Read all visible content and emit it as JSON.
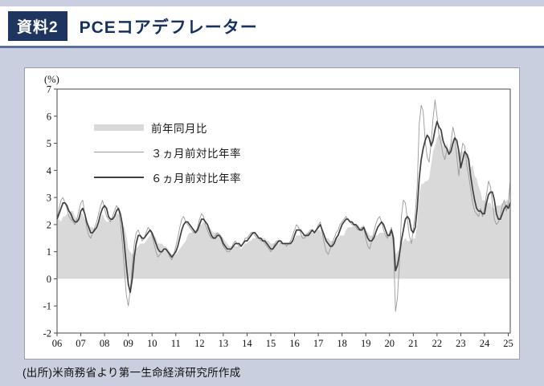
{
  "header": {
    "badge": "資料2",
    "title": "PCEコアデフレーター"
  },
  "footer": {
    "source": "(出所)米商務省より第一生命経済研究所作成"
  },
  "colors": {
    "page_background": "#c9cfde",
    "header_background": "#ffffff",
    "badge_background": "#1e3560",
    "title_text": "#16305f",
    "header_rule": "#5a6da5",
    "panel_border": "#9aa0b0",
    "area_series": "#d9d9d9",
    "thin_line_series": "#9a9a9a",
    "mid_line_series": "#3f3f3f"
  },
  "chart_data": {
    "type": "line",
    "title": "PCEコアデフレーター",
    "unit_label": "(%)",
    "grid": false,
    "legend_position": "upper-left",
    "x_start": "2006-01",
    "x_frequency": "monthly",
    "x_tick_labels": [
      "06",
      "07",
      "08",
      "09",
      "10",
      "11",
      "12",
      "13",
      "14",
      "15",
      "16",
      "17",
      "18",
      "19",
      "20",
      "21",
      "22",
      "23",
      "24",
      "25"
    ],
    "ylim": [
      -2,
      7
    ],
    "y_ticks": [
      -2,
      -1,
      0,
      1,
      2,
      3,
      4,
      5,
      6,
      7
    ],
    "series": [
      {
        "name": "前年同月比",
        "style": "area",
        "color": "#d9d9d9",
        "values": [
          2.2,
          2.2,
          2.1,
          2.3,
          2.3,
          2.4,
          2.4,
          2.5,
          2.5,
          2.3,
          2.2,
          2.3,
          2.4,
          2.4,
          2.2,
          2.1,
          2.0,
          1.9,
          1.9,
          1.8,
          1.9,
          2.0,
          2.2,
          2.4,
          2.2,
          2.1,
          2.1,
          2.2,
          2.2,
          2.3,
          2.4,
          2.4,
          2.2,
          2.0,
          1.9,
          1.6,
          1.1,
          1.0,
          0.9,
          1.0,
          1.1,
          1.2,
          1.3,
          1.3,
          1.3,
          1.4,
          1.5,
          1.6,
          1.7,
          1.6,
          1.5,
          1.3,
          1.3,
          1.3,
          1.2,
          1.2,
          1.1,
          1.0,
          0.9,
          0.9,
          0.9,
          1.0,
          1.1,
          1.2,
          1.3,
          1.4,
          1.6,
          1.7,
          1.7,
          1.8,
          1.8,
          1.9,
          2.0,
          2.0,
          2.1,
          2.0,
          1.9,
          1.9,
          1.8,
          1.7,
          1.7,
          1.7,
          1.7,
          1.6,
          1.5,
          1.4,
          1.3,
          1.2,
          1.2,
          1.2,
          1.2,
          1.2,
          1.2,
          1.1,
          1.2,
          1.3,
          1.3,
          1.4,
          1.4,
          1.5,
          1.5,
          1.5,
          1.5,
          1.5,
          1.5,
          1.5,
          1.4,
          1.4,
          1.3,
          1.3,
          1.3,
          1.3,
          1.3,
          1.3,
          1.3,
          1.3,
          1.3,
          1.3,
          1.3,
          1.4,
          1.5,
          1.6,
          1.6,
          1.6,
          1.6,
          1.6,
          1.7,
          1.7,
          1.7,
          1.7,
          1.7,
          1.8,
          1.8,
          1.8,
          1.6,
          1.6,
          1.5,
          1.5,
          1.4,
          1.4,
          1.4,
          1.5,
          1.5,
          1.6,
          1.6,
          1.6,
          1.8,
          1.9,
          1.9,
          1.9,
          2.0,
          2.0,
          2.0,
          1.9,
          1.9,
          2.0,
          1.8,
          1.7,
          1.6,
          1.6,
          1.5,
          1.6,
          1.6,
          1.7,
          1.7,
          1.7,
          1.6,
          1.6,
          1.7,
          1.8,
          1.7,
          0.9,
          1.0,
          1.1,
          1.3,
          1.4,
          1.5,
          1.4,
          1.4,
          1.4,
          1.5,
          1.5,
          2.0,
          3.1,
          3.5,
          3.5,
          3.6,
          3.6,
          3.7,
          4.2,
          4.7,
          4.9,
          5.2,
          5.3,
          5.3,
          4.9,
          4.9,
          5.0,
          4.7,
          4.9,
          5.2,
          5.1,
          4.8,
          4.6,
          4.7,
          4.7,
          4.6,
          4.6,
          4.6,
          4.1,
          4.2,
          3.8,
          3.7,
          3.4,
          3.2,
          2.9,
          2.9,
          2.8,
          2.8,
          2.8,
          2.6,
          2.6,
          2.7,
          2.7,
          2.7,
          2.8,
          2.8,
          2.9,
          2.9,
          2.8
        ]
      },
      {
        "name": "３ヵ月前対比年率",
        "style": "thin-line",
        "color": "#9a9a9a",
        "values": [
          2.2,
          2.6,
          2.9,
          3.0,
          2.8,
          2.6,
          2.3,
          2.2,
          2.1,
          2.0,
          2.2,
          2.5,
          2.8,
          2.9,
          2.4,
          1.9,
          1.6,
          1.5,
          1.7,
          1.9,
          2.1,
          2.4,
          2.7,
          2.9,
          2.6,
          2.3,
          2.2,
          2.1,
          2.3,
          2.5,
          2.7,
          2.6,
          2.1,
          1.3,
          0.4,
          -0.6,
          -1.0,
          -0.4,
          0.5,
          1.3,
          1.7,
          1.8,
          1.6,
          1.4,
          1.5,
          1.7,
          1.9,
          1.8,
          1.6,
          1.3,
          1.0,
          0.8,
          0.9,
          1.0,
          1.1,
          1.1,
          1.0,
          0.8,
          0.7,
          0.9,
          1.2,
          1.5,
          1.9,
          2.2,
          2.3,
          2.1,
          2.0,
          1.9,
          1.8,
          1.7,
          1.7,
          1.9,
          2.2,
          2.4,
          2.3,
          2.0,
          1.8,
          1.6,
          1.5,
          1.5,
          1.6,
          1.7,
          1.6,
          1.4,
          1.2,
          1.1,
          1.0,
          1.0,
          1.1,
          1.3,
          1.4,
          1.3,
          1.2,
          1.2,
          1.3,
          1.5,
          1.5,
          1.6,
          1.7,
          1.7,
          1.6,
          1.5,
          1.5,
          1.4,
          1.4,
          1.3,
          1.2,
          1.1,
          1.0,
          1.1,
          1.3,
          1.4,
          1.4,
          1.3,
          1.3,
          1.3,
          1.2,
          1.3,
          1.4,
          1.6,
          1.8,
          2.0,
          1.9,
          1.7,
          1.5,
          1.5,
          1.6,
          1.7,
          1.8,
          1.8,
          1.7,
          1.8,
          2.0,
          2.1,
          1.7,
          1.3,
          1.0,
          0.9,
          1.1,
          1.3,
          1.5,
          1.7,
          1.8,
          2.0,
          2.1,
          2.2,
          2.3,
          2.2,
          2.1,
          2.0,
          2.0,
          1.9,
          1.8,
          1.8,
          1.9,
          1.9,
          1.5,
          1.2,
          1.1,
          1.4,
          1.7,
          2.0,
          2.2,
          2.3,
          2.1,
          1.8,
          1.6,
          1.5,
          1.7,
          1.9,
          1.2,
          -1.2,
          -0.7,
          0.6,
          2.3,
          2.9,
          2.8,
          2.2,
          1.6,
          1.3,
          1.8,
          2.4,
          3.4,
          5.7,
          6.4,
          6.2,
          5.1,
          4.5,
          4.3,
          5.0,
          5.9,
          6.6,
          6.0,
          5.3,
          5.0,
          4.6,
          4.4,
          4.8,
          4.6,
          5.0,
          5.6,
          5.3,
          4.5,
          3.8,
          4.5,
          5.0,
          4.9,
          4.2,
          3.8,
          3.3,
          2.8,
          2.5,
          2.4,
          2.3,
          2.6,
          2.3,
          2.6,
          3.1,
          3.6,
          3.4,
          2.8,
          2.2,
          2.0,
          2.1,
          2.3,
          2.7,
          2.9,
          2.5,
          2.8,
          3.6
        ]
      },
      {
        "name": "６ヵ月前対比年率",
        "style": "line",
        "color": "#3f3f3f",
        "values": [
          2.2,
          2.4,
          2.6,
          2.8,
          2.8,
          2.7,
          2.5,
          2.4,
          2.2,
          2.1,
          2.1,
          2.2,
          2.5,
          2.6,
          2.4,
          2.1,
          1.9,
          1.7,
          1.7,
          1.8,
          1.9,
          2.1,
          2.4,
          2.6,
          2.7,
          2.6,
          2.3,
          2.2,
          2.2,
          2.3,
          2.5,
          2.6,
          2.4,
          2.0,
          1.3,
          0.5,
          -0.2,
          -0.5,
          0.0,
          0.8,
          1.3,
          1.6,
          1.6,
          1.5,
          1.5,
          1.6,
          1.7,
          1.8,
          1.7,
          1.5,
          1.3,
          1.1,
          1.0,
          1.0,
          1.1,
          1.1,
          1.0,
          0.9,
          0.8,
          0.9,
          1.0,
          1.2,
          1.5,
          1.8,
          2.0,
          2.1,
          2.1,
          2.0,
          1.9,
          1.8,
          1.7,
          1.8,
          2.0,
          2.2,
          2.2,
          2.1,
          2.0,
          1.8,
          1.6,
          1.5,
          1.5,
          1.6,
          1.6,
          1.5,
          1.3,
          1.2,
          1.1,
          1.1,
          1.1,
          1.2,
          1.3,
          1.3,
          1.3,
          1.2,
          1.3,
          1.4,
          1.4,
          1.5,
          1.6,
          1.7,
          1.7,
          1.6,
          1.5,
          1.5,
          1.4,
          1.4,
          1.3,
          1.2,
          1.1,
          1.1,
          1.2,
          1.3,
          1.4,
          1.4,
          1.3,
          1.3,
          1.3,
          1.3,
          1.3,
          1.4,
          1.6,
          1.8,
          1.8,
          1.8,
          1.7,
          1.6,
          1.6,
          1.6,
          1.7,
          1.8,
          1.7,
          1.8,
          1.9,
          2.0,
          1.8,
          1.6,
          1.4,
          1.3,
          1.2,
          1.2,
          1.3,
          1.5,
          1.6,
          1.8,
          2.0,
          2.1,
          2.2,
          2.2,
          2.1,
          2.1,
          2.0,
          2.0,
          1.9,
          1.8,
          1.8,
          1.9,
          1.7,
          1.5,
          1.4,
          1.4,
          1.5,
          1.7,
          1.9,
          2.0,
          2.1,
          2.0,
          1.8,
          1.6,
          1.6,
          1.8,
          1.5,
          0.3,
          0.5,
          0.9,
          1.4,
          1.8,
          2.2,
          2.3,
          2.2,
          1.8,
          1.7,
          1.9,
          2.6,
          3.7,
          4.4,
          4.8,
          5.1,
          5.3,
          5.2,
          4.9,
          5.1,
          5.5,
          5.8,
          5.6,
          5.5,
          5.1,
          4.9,
          4.8,
          4.6,
          4.7,
          5.0,
          5.2,
          5.1,
          4.7,
          4.1,
          4.4,
          4.7,
          4.6,
          4.4,
          3.8,
          3.3,
          2.9,
          2.6,
          2.5,
          2.5,
          2.4,
          2.4,
          2.8,
          3.1,
          3.2,
          3.2,
          2.9,
          2.4,
          2.2,
          2.2,
          2.4,
          2.6,
          2.7,
          2.6,
          2.8
        ]
      }
    ]
  }
}
